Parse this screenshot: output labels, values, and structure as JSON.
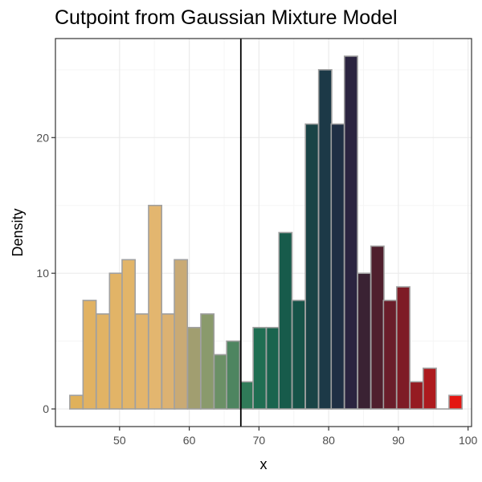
{
  "chart_data": {
    "type": "bar",
    "title": "Cutpoint from Gaussian Mixture Model",
    "xlabel": "x",
    "ylabel": "Density",
    "xlim": [
      40.8,
      100.5
    ],
    "ylim": [
      -1.3,
      27.3
    ],
    "x_ticks": [
      50,
      60,
      70,
      80,
      90,
      100
    ],
    "y_ticks": [
      0,
      10,
      20
    ],
    "bin_width": 1.875,
    "cutpoint": 67.4,
    "grid": true,
    "bin_edges_start": 42.9,
    "bins": [
      {
        "x": 43.8,
        "value": 1,
        "color": "#e0b15a"
      },
      {
        "x": 45.7,
        "value": 8,
        "color": "#e1b262"
      },
      {
        "x": 47.6,
        "value": 7,
        "color": "#e1b365"
      },
      {
        "x": 49.5,
        "value": 10,
        "color": "#e2b467"
      },
      {
        "x": 51.3,
        "value": 11,
        "color": "#e2b569"
      },
      {
        "x": 53.2,
        "value": 7,
        "color": "#e3b56c"
      },
      {
        "x": 55.1,
        "value": 15,
        "color": "#e3b66f"
      },
      {
        "x": 57.0,
        "value": 7,
        "color": "#dcb272"
      },
      {
        "x": 58.8,
        "value": 11,
        "color": "#c9aa75"
      },
      {
        "x": 60.7,
        "value": 6,
        "color": "#a19e70"
      },
      {
        "x": 62.6,
        "value": 7,
        "color": "#8a9a6c"
      },
      {
        "x": 64.5,
        "value": 4,
        "color": "#6b9066"
      },
      {
        "x": 66.3,
        "value": 5,
        "color": "#4e8560"
      },
      {
        "x": 68.2,
        "value": 2,
        "color": "#2f7a58"
      },
      {
        "x": 70.1,
        "value": 6,
        "color": "#1f6e52"
      },
      {
        "x": 72.0,
        "value": 6,
        "color": "#1a644e"
      },
      {
        "x": 73.8,
        "value": 13,
        "color": "#175b4b"
      },
      {
        "x": 75.7,
        "value": 8,
        "color": "#165348"
      },
      {
        "x": 77.6,
        "value": 21,
        "color": "#1a4446"
      },
      {
        "x": 79.5,
        "value": 25,
        "color": "#1c3947"
      },
      {
        "x": 81.3,
        "value": 21,
        "color": "#1f2f44"
      },
      {
        "x": 83.2,
        "value": 26,
        "color": "#2b2440"
      },
      {
        "x": 85.1,
        "value": 10,
        "color": "#3a2233"
      },
      {
        "x": 87.0,
        "value": 12,
        "color": "#4f1f2d"
      },
      {
        "x": 88.8,
        "value": 8,
        "color": "#6a1d2a"
      },
      {
        "x": 90.7,
        "value": 9,
        "color": "#7e1c26"
      },
      {
        "x": 92.6,
        "value": 2,
        "color": "#951b22"
      },
      {
        "x": 94.5,
        "value": 3,
        "color": "#ad1a1e"
      },
      {
        "x": 96.3,
        "value": 0,
        "color": "#c41a18"
      },
      {
        "x": 98.2,
        "value": 1,
        "color": "#e41612"
      }
    ],
    "colors": {
      "panel_background": "#ffffff",
      "grid_major": "#ebebeb",
      "grid_minor": "#f5f5f5",
      "bar_outline": "#a0a0a0",
      "cutpoint_line": "#000000",
      "panel_border": "#333333"
    }
  }
}
